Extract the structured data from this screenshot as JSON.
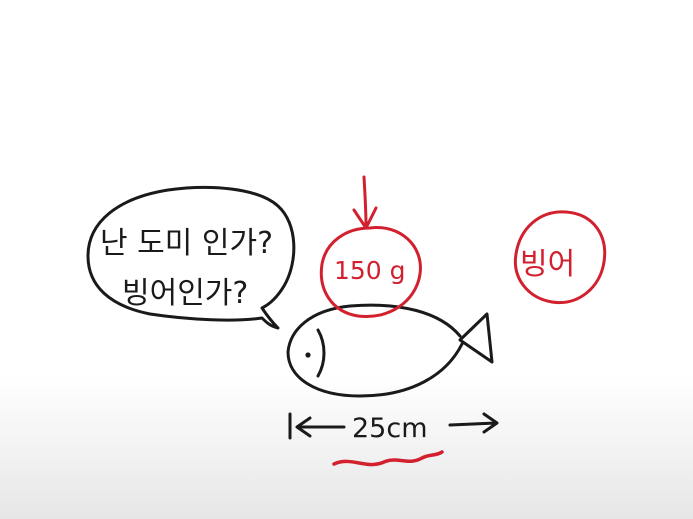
{
  "speech_bubble": {
    "line1": "난 도미 인가?",
    "line2": "빙어인가?"
  },
  "weight_label": "150 g",
  "length_label": "25cm",
  "answer_label": "빙어",
  "colors": {
    "ink": "#1a1a1a",
    "accent_red": "#d2202f",
    "background": "#ffffff"
  }
}
